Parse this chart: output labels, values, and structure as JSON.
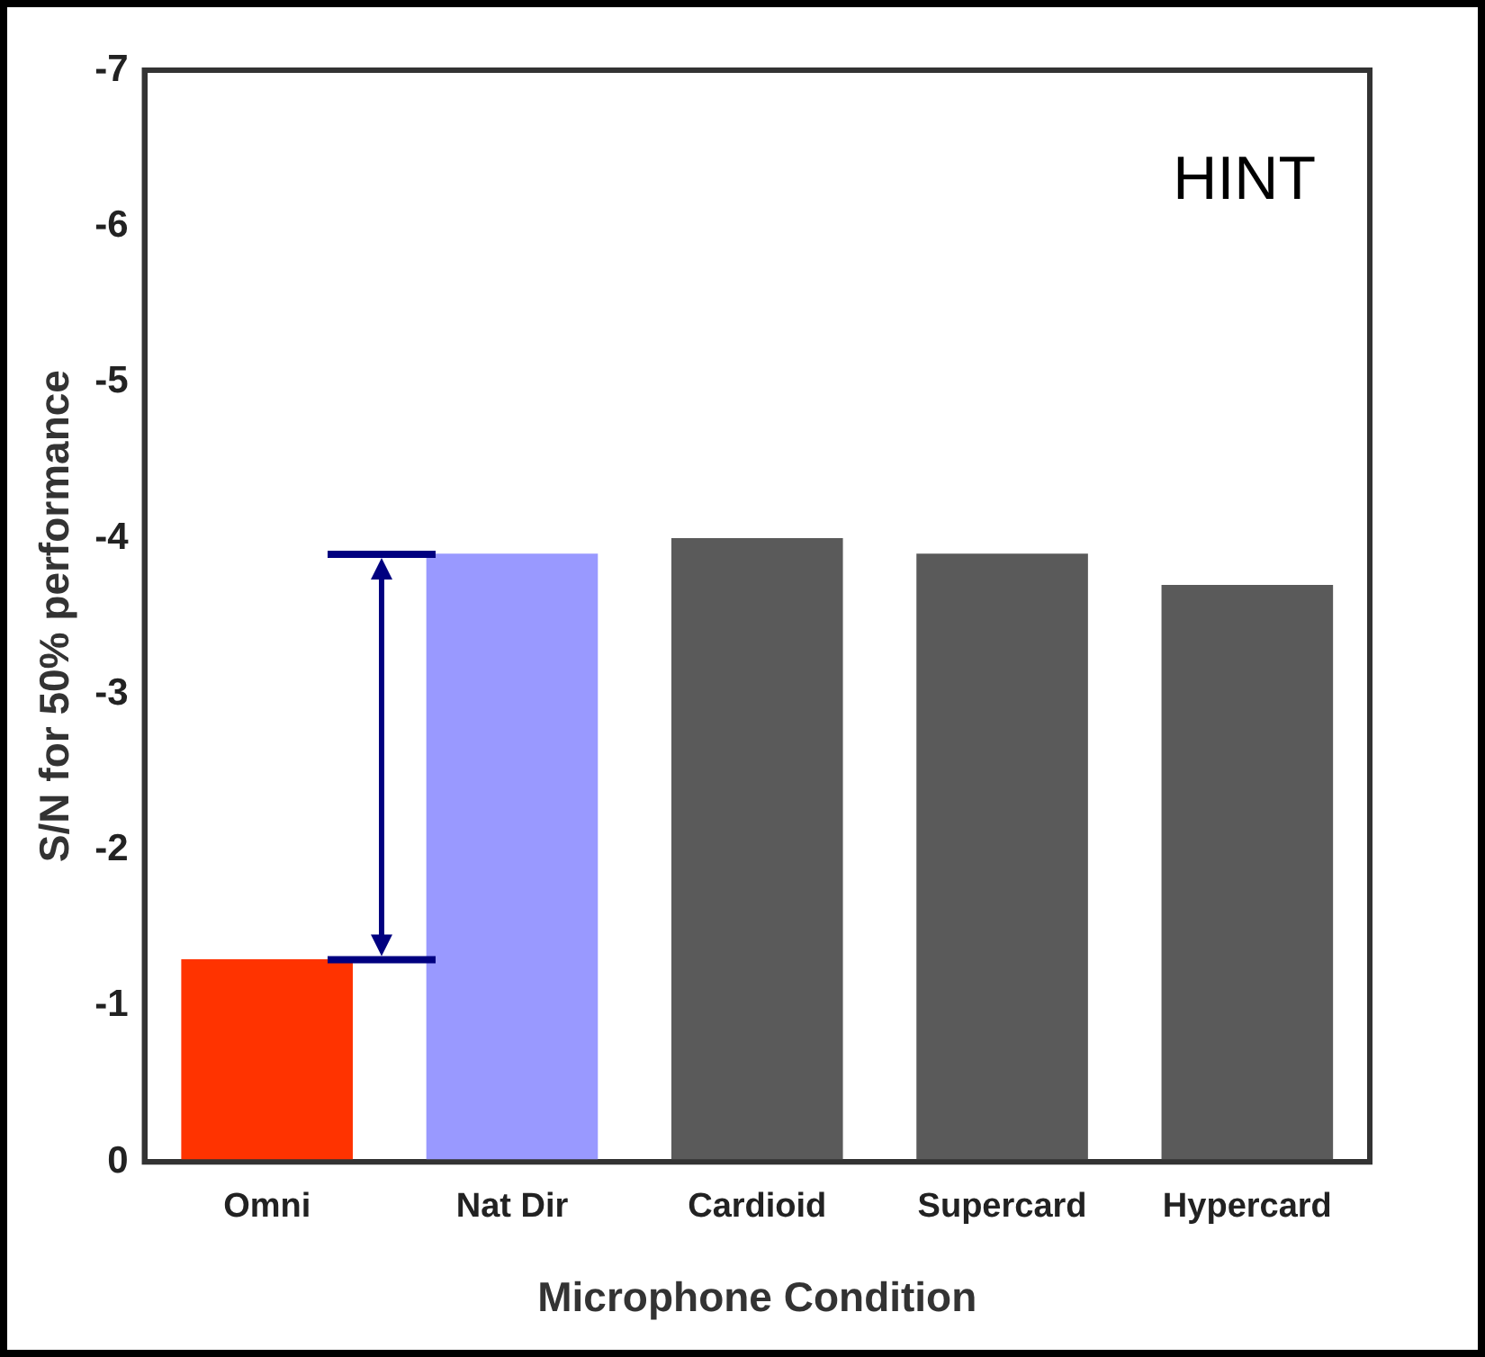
{
  "chart_data": {
    "type": "bar",
    "categories": [
      "Omni",
      "Nat Dir",
      "Cardioid",
      "Supercard",
      "Hypercard"
    ],
    "values": [
      -1.3,
      -3.9,
      -4.0,
      -3.9,
      -3.7
    ],
    "colors": [
      "#ff3300",
      "#9999ff",
      "#5a5a5a",
      "#5a5a5a",
      "#5a5a5a"
    ],
    "xlabel": "Microphone Condition",
    "ylabel": "S/N for 50% performance",
    "ylim": [
      0,
      -7
    ],
    "yticks": [
      -7,
      -6,
      -5,
      -4,
      -3,
      -2,
      -1,
      0
    ],
    "annotations": [
      "HINT"
    ],
    "grid": false,
    "legend": false
  }
}
